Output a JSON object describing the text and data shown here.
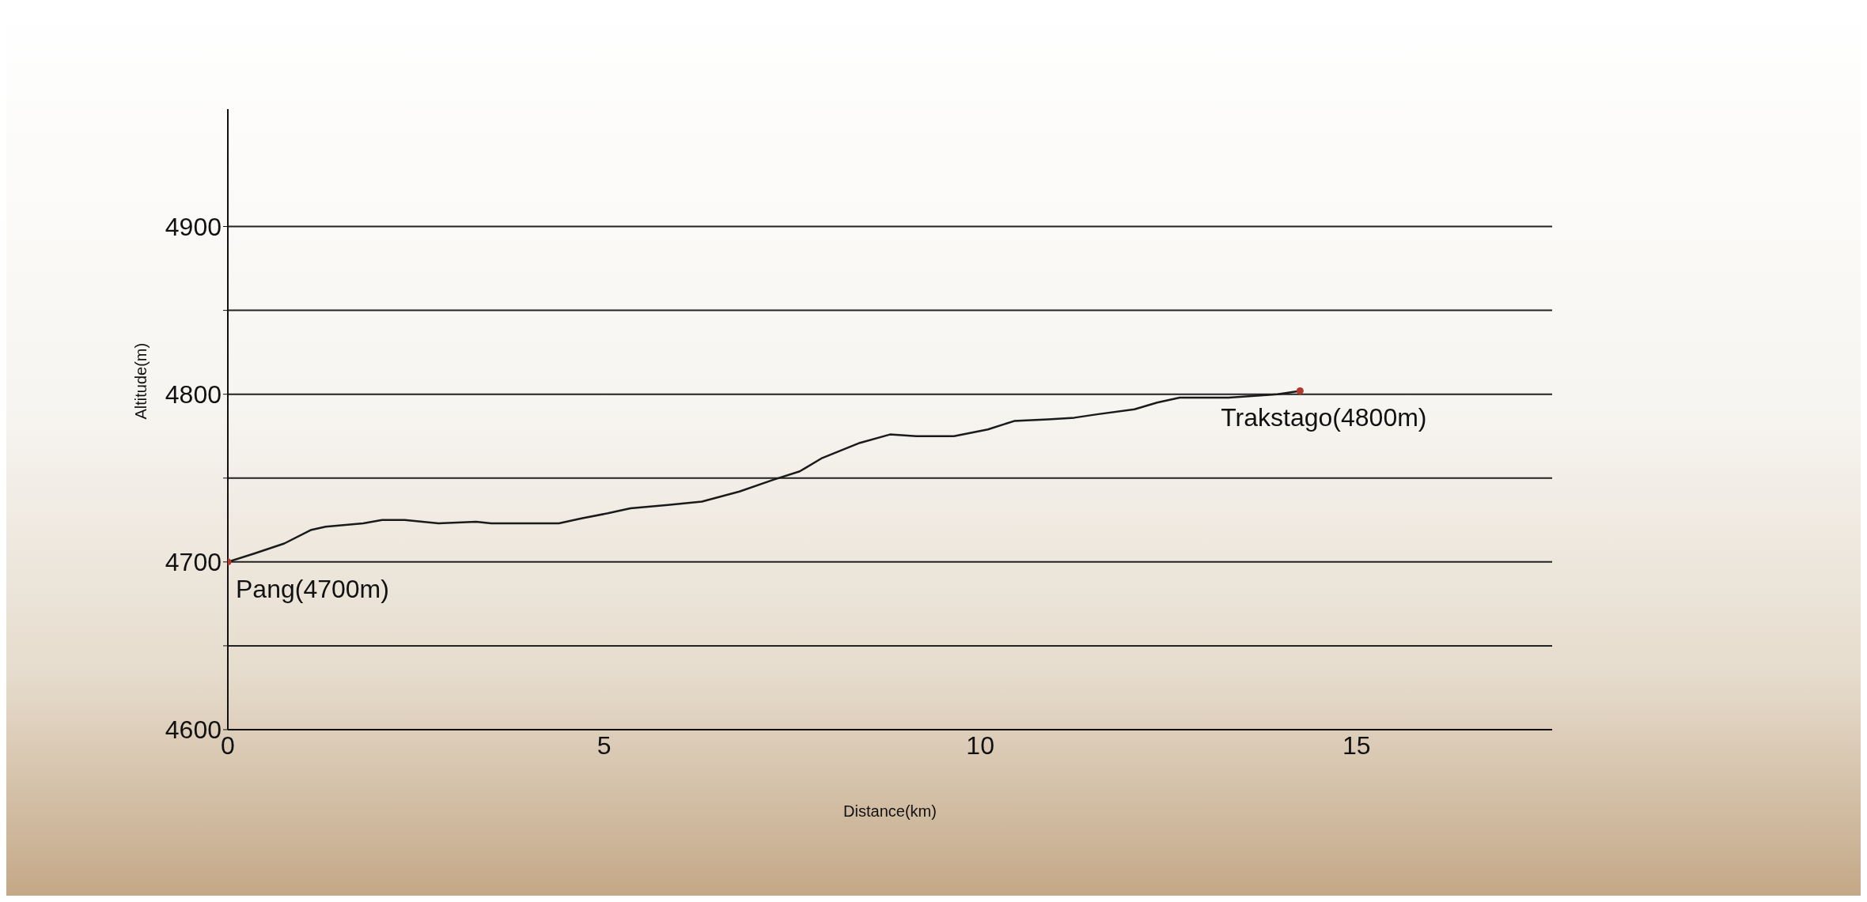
{
  "chart_data": {
    "type": "line",
    "xlabel": "Distance(km)",
    "ylabel": "Altitude(m)",
    "xlim": [
      0,
      17.6
    ],
    "xticks": [
      0,
      5,
      10,
      15
    ],
    "ylim": [
      4600,
      4970
    ],
    "yticks": [
      4600,
      {
        "value": 4650,
        "label": null
      },
      4700,
      {
        "value": 4750,
        "label": null
      },
      4800,
      {
        "value": 4850,
        "label": null
      },
      4900
    ],
    "grid": "y",
    "series": [
      {
        "color": "#1a1a1a",
        "marker": "none",
        "line_style": "solid",
        "x": [
          0,
          0.35,
          0.75,
          1.1,
          1.3,
          1.8,
          2.05,
          2.35,
          2.8,
          3.3,
          3.5,
          3.75,
          4.4,
          4.7,
          5.05,
          5.35,
          5.85,
          6.3,
          6.8,
          7.25,
          7.6,
          7.9,
          8.4,
          8.8,
          9.15,
          9.65,
          10.1,
          10.45,
          10.9,
          11.25,
          11.55,
          12.05,
          12.35,
          12.65,
          13.3,
          13.95,
          14.25
        ],
        "values": [
          4700,
          4705,
          4711,
          4719,
          4721,
          4723,
          4725,
          4725,
          4723,
          4724,
          4723,
          4723,
          4723,
          4726,
          4729,
          4732,
          4734,
          4736,
          4742,
          4749,
          4754,
          4762,
          4771,
          4776,
          4775,
          4775,
          4779,
          4784,
          4785,
          4786,
          4788,
          4791,
          4795,
          4798,
          4798,
          4800,
          4802
        ]
      },
      {
        "type": "scatter",
        "color": "#b0392b",
        "marker": "circle",
        "x": [
          0,
          14.25
        ],
        "values": [
          4700,
          4802
        ]
      }
    ],
    "annotations": [
      {
        "text": "Pang(4700m)",
        "x": 0,
        "y": 4700
      },
      {
        "text": "Trakstago(4800m)",
        "x": 14.25,
        "y": 4802
      }
    ]
  }
}
